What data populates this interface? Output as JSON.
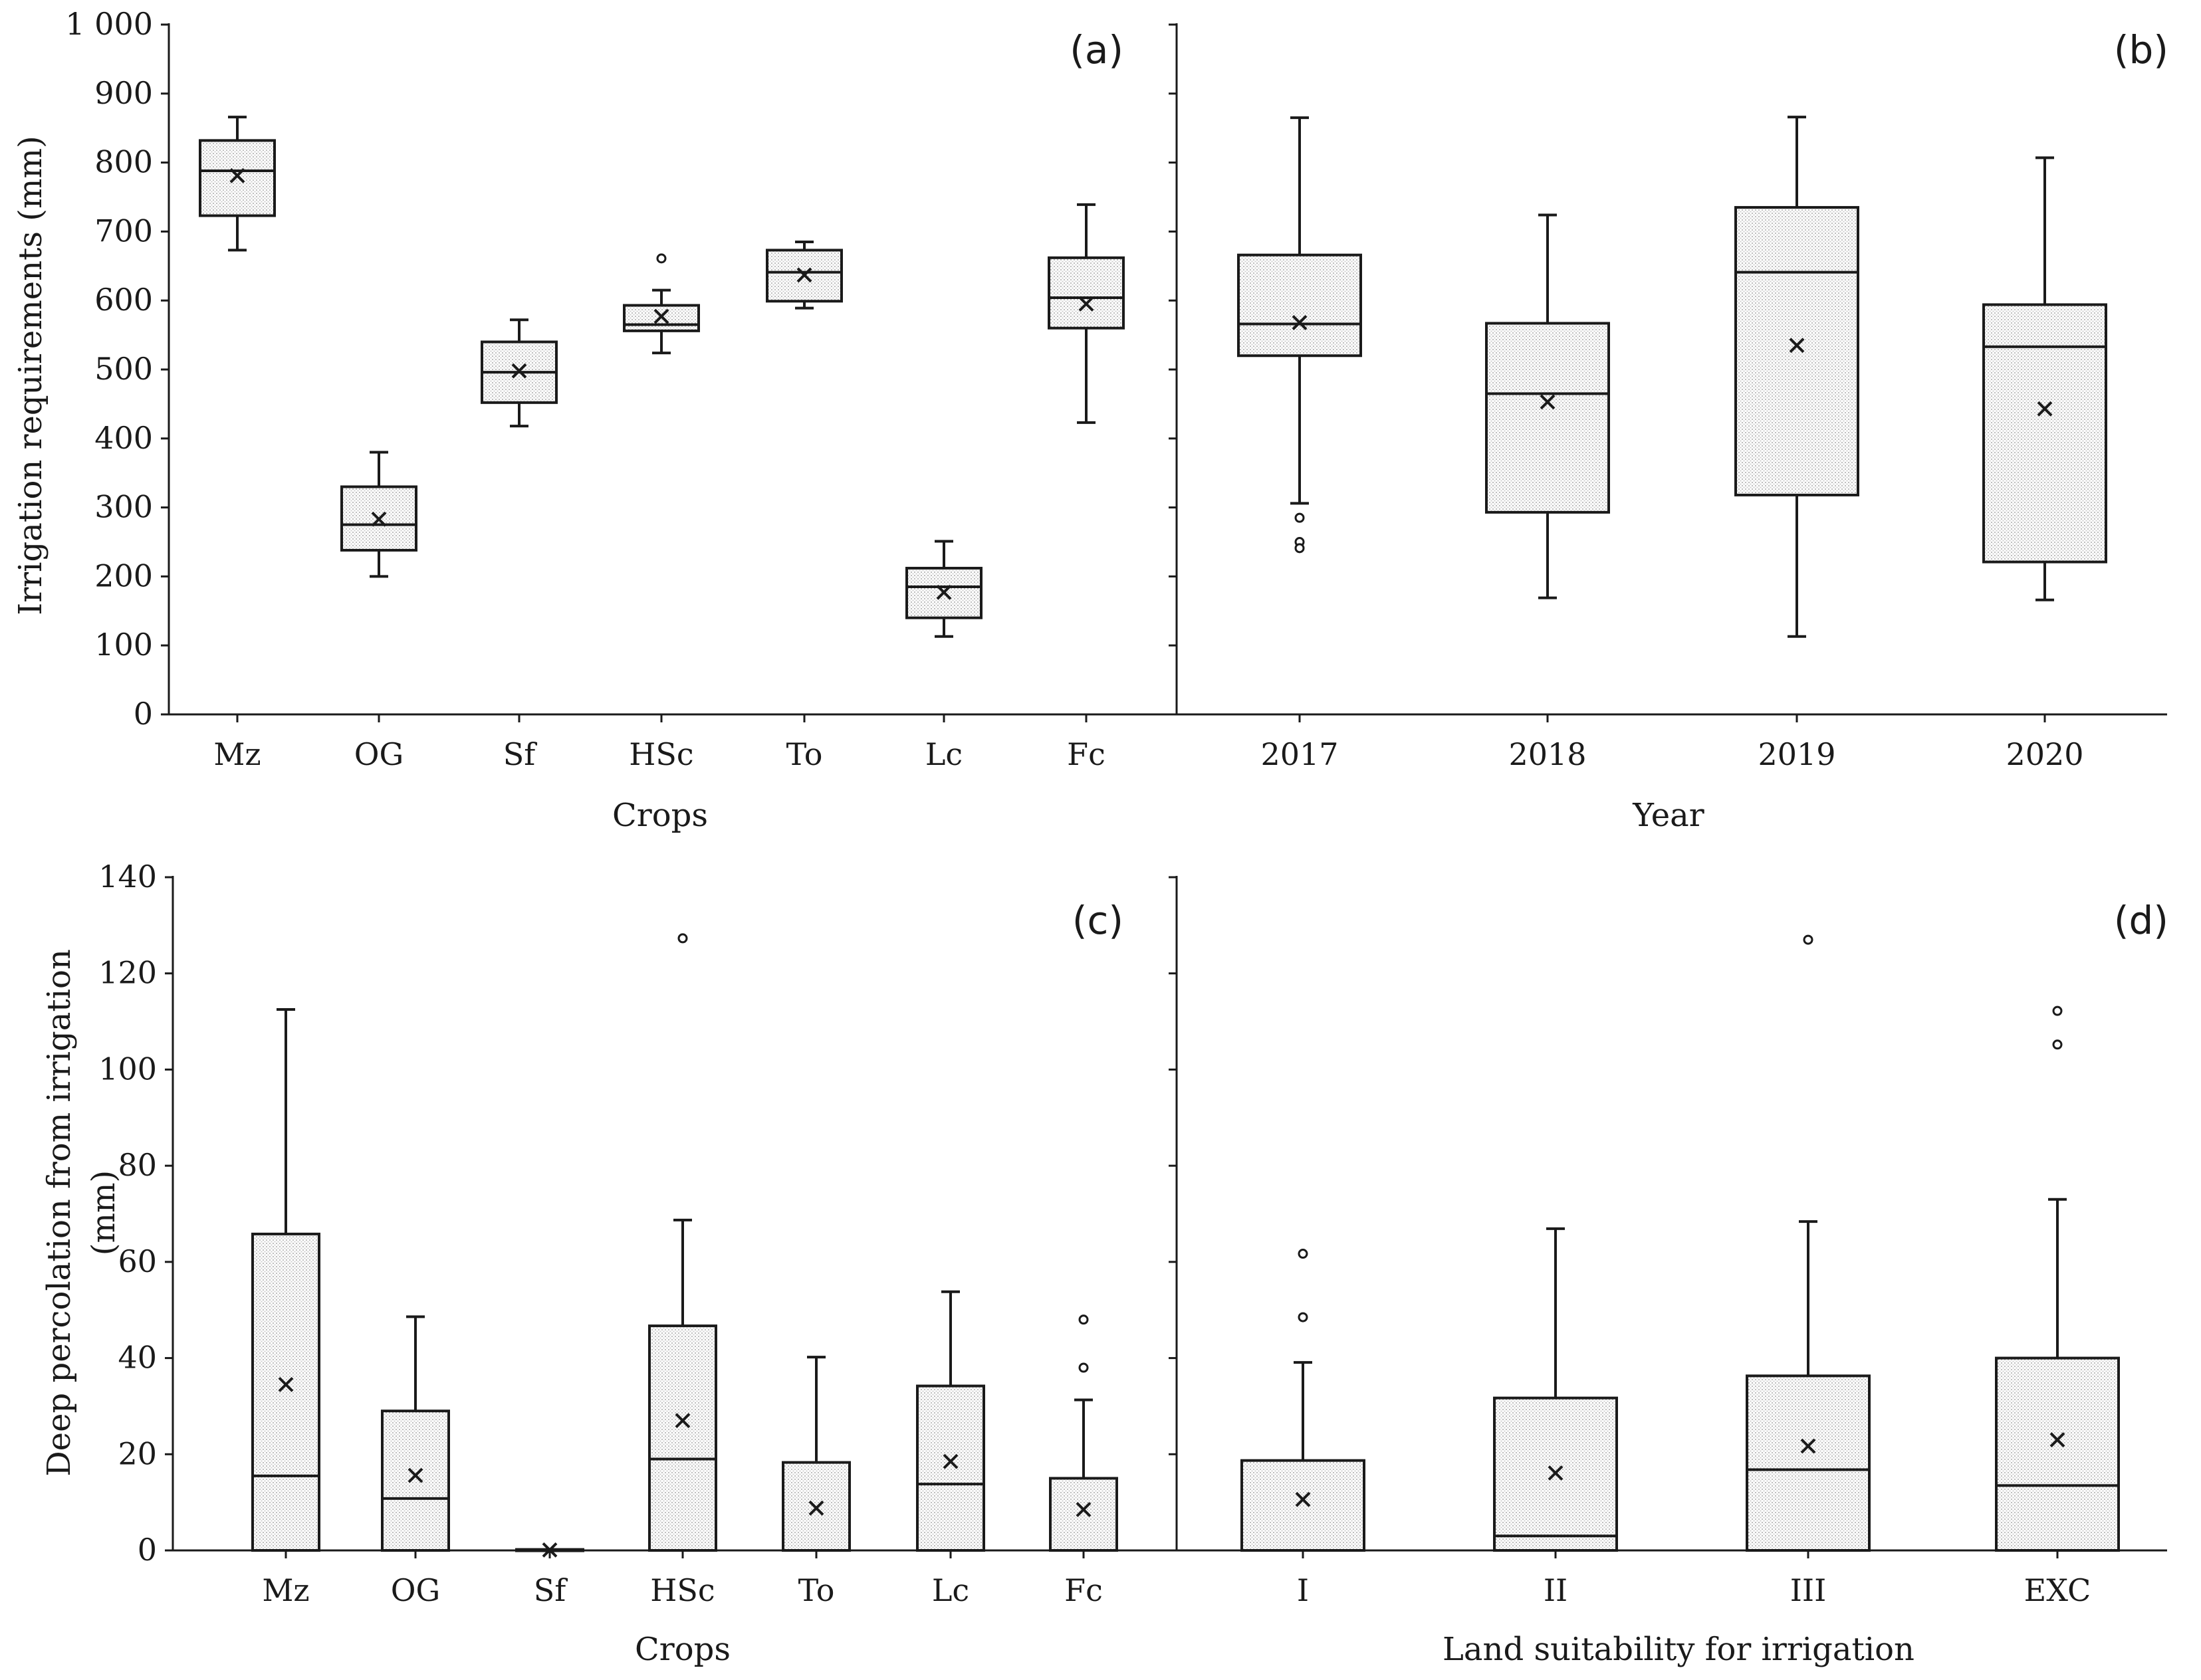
{
  "chart_data": [
    {
      "id": "a",
      "type": "box",
      "panel_label": "(a)",
      "ylabel": "Irrigation requirements (mm)",
      "xlabel": "Crops",
      "ylim": [
        0,
        1000
      ],
      "yticks": [
        0,
        100,
        200,
        300,
        400,
        500,
        600,
        700,
        800,
        900,
        1000
      ],
      "ytick_labels": [
        "0",
        "100",
        "200",
        "300",
        "400",
        "500",
        "600",
        "700",
        "800",
        "900",
        "1 000"
      ],
      "categories": [
        "Mz",
        "OG",
        "Sf",
        "HSc",
        "To",
        "Lc",
        "Fc"
      ],
      "boxes": [
        {
          "min": 673,
          "q1": 723,
          "median": 788,
          "q3": 832,
          "max": 866,
          "mean": 781,
          "outliers": []
        },
        {
          "min": 200,
          "q1": 238,
          "median": 275,
          "q3": 330,
          "max": 380,
          "mean": 283,
          "outliers": []
        },
        {
          "min": 418,
          "q1": 452,
          "median": 496,
          "q3": 540,
          "max": 572,
          "mean": 498,
          "outliers": []
        },
        {
          "min": 524,
          "q1": 556,
          "median": 565,
          "q3": 593,
          "max": 615,
          "mean": 577,
          "outliers": [
            661
          ]
        },
        {
          "min": 589,
          "q1": 599,
          "median": 641,
          "q3": 673,
          "max": 685,
          "mean": 637,
          "outliers": []
        },
        {
          "min": 113,
          "q1": 140,
          "median": 185,
          "q3": 212,
          "max": 251,
          "mean": 177,
          "outliers": []
        },
        {
          "min": 423,
          "q1": 560,
          "median": 604,
          "q3": 662,
          "max": 739,
          "mean": 595,
          "outliers": []
        }
      ]
    },
    {
      "id": "b",
      "type": "box",
      "panel_label": "(b)",
      "xlabel": "Year",
      "ylim": [
        0,
        1000
      ],
      "yticks": [
        0,
        100,
        200,
        300,
        400,
        500,
        600,
        700,
        800,
        900,
        1000
      ],
      "categories": [
        "2017",
        "2018",
        "2019",
        "2020"
      ],
      "boxes": [
        {
          "min": 306,
          "q1": 520,
          "median": 566,
          "q3": 666,
          "max": 865,
          "mean": 568,
          "outliers": [
            285,
            250,
            241
          ]
        },
        {
          "min": 169,
          "q1": 293,
          "median": 465,
          "q3": 567,
          "max": 724,
          "mean": 453,
          "outliers": []
        },
        {
          "min": 113,
          "q1": 318,
          "median": 641,
          "q3": 735,
          "max": 866,
          "mean": 535,
          "outliers": []
        },
        {
          "min": 166,
          "q1": 221,
          "median": 533,
          "q3": 594,
          "max": 807,
          "mean": 443,
          "outliers": []
        }
      ]
    },
    {
      "id": "c",
      "type": "box",
      "panel_label": "(c)",
      "ylabel": "Deep percolation from irrigation (mm)",
      "ylabel_lines": [
        "Deep percolation from irrigation",
        "(mm)"
      ],
      "xlabel": "Crops",
      "ylim": [
        0,
        140
      ],
      "yticks": [
        0,
        20,
        40,
        60,
        80,
        100,
        120,
        140
      ],
      "ytick_labels": [
        "0",
        "20",
        "40",
        "60",
        "80",
        "100",
        "120",
        "140"
      ],
      "categories": [
        "Mz",
        "OG",
        "Sf",
        "HSc",
        "To",
        "Lc",
        "Fc"
      ],
      "boxes": [
        {
          "min": 0,
          "q1": 0,
          "median": 15.5,
          "q3": 65.8,
          "max": 112.5,
          "mean": 34.5,
          "outliers": []
        },
        {
          "min": 0,
          "q1": 0,
          "median": 10.8,
          "q3": 29.0,
          "max": 48.6,
          "mean": 15.6,
          "outliers": []
        },
        {
          "min": 0,
          "q1": 0,
          "median": 0,
          "q3": 0.2,
          "max": 0.2,
          "mean": 0.1,
          "outliers": []
        },
        {
          "min": 0,
          "q1": 0,
          "median": 19.0,
          "q3": 46.7,
          "max": 68.7,
          "mean": 27.0,
          "outliers": [
            127.3
          ]
        },
        {
          "min": 0,
          "q1": 0,
          "median": 0,
          "q3": 18.3,
          "max": 40.2,
          "mean": 8.8,
          "outliers": []
        },
        {
          "min": 0,
          "q1": 0,
          "median": 13.8,
          "q3": 34.2,
          "max": 53.8,
          "mean": 18.5,
          "outliers": []
        },
        {
          "min": 0,
          "q1": 0,
          "median": 0,
          "q3": 15.0,
          "max": 31.3,
          "mean": 8.5,
          "outliers": [
            48.0,
            38.0
          ]
        }
      ]
    },
    {
      "id": "d",
      "type": "box",
      "panel_label": "(d)",
      "xlabel": "Land suitability for irrigation",
      "ylim": [
        0,
        140
      ],
      "yticks": [
        0,
        20,
        40,
        60,
        80,
        100,
        120,
        140
      ],
      "categories": [
        "I",
        "II",
        "III",
        "EXC"
      ],
      "boxes": [
        {
          "min": 0,
          "q1": 0,
          "median": 0,
          "q3": 18.7,
          "max": 39.1,
          "mean": 10.6,
          "outliers": [
            61.7,
            48.5
          ]
        },
        {
          "min": 0,
          "q1": 0,
          "median": 3.0,
          "q3": 31.7,
          "max": 66.9,
          "mean": 16.1,
          "outliers": []
        },
        {
          "min": 0,
          "q1": 0,
          "median": 16.8,
          "q3": 36.3,
          "max": 68.4,
          "mean": 21.7,
          "outliers": [
            127.0
          ]
        },
        {
          "min": 0,
          "q1": 0,
          "median": 13.5,
          "q3": 40.0,
          "max": 73.0,
          "mean": 23.0,
          "outliers": [
            112.2,
            105.2
          ]
        }
      ]
    }
  ]
}
